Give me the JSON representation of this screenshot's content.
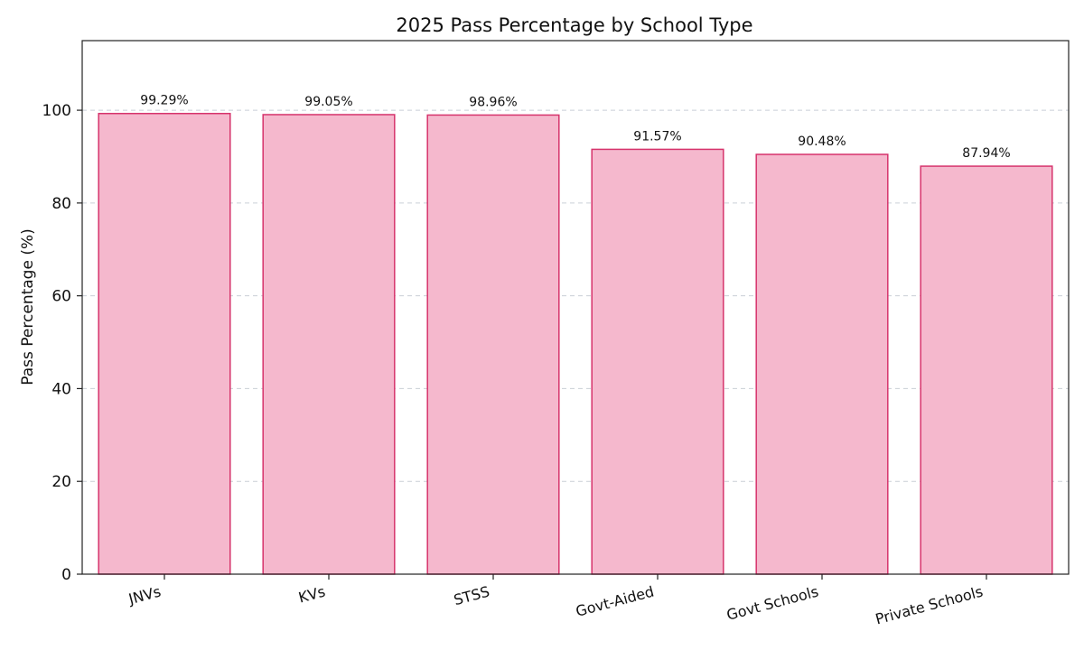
{
  "chart_data": {
    "type": "bar",
    "title": "2025 Pass Percentage by School Type",
    "xlabel": "",
    "ylabel": "Pass Percentage (%)",
    "categories": [
      "JNVs",
      "KVs",
      "STSS",
      "Govt-Aided",
      "Govt Schools",
      "Private Schools"
    ],
    "values": [
      99.29,
      99.05,
      98.96,
      91.57,
      90.48,
      87.94
    ],
    "data_labels": [
      "99.29%",
      "99.05%",
      "98.96%",
      "91.57%",
      "90.48%",
      "87.94%"
    ],
    "ylim": [
      0,
      115
    ],
    "yticks": [
      0,
      20,
      40,
      60,
      80,
      100
    ],
    "grid": "y-dashed",
    "legend": "none",
    "colors": {
      "bar_fill": "#f5b8cd",
      "bar_edge": "#d6336c",
      "grid": "#c9cfd6",
      "axis": "#222222"
    }
  }
}
